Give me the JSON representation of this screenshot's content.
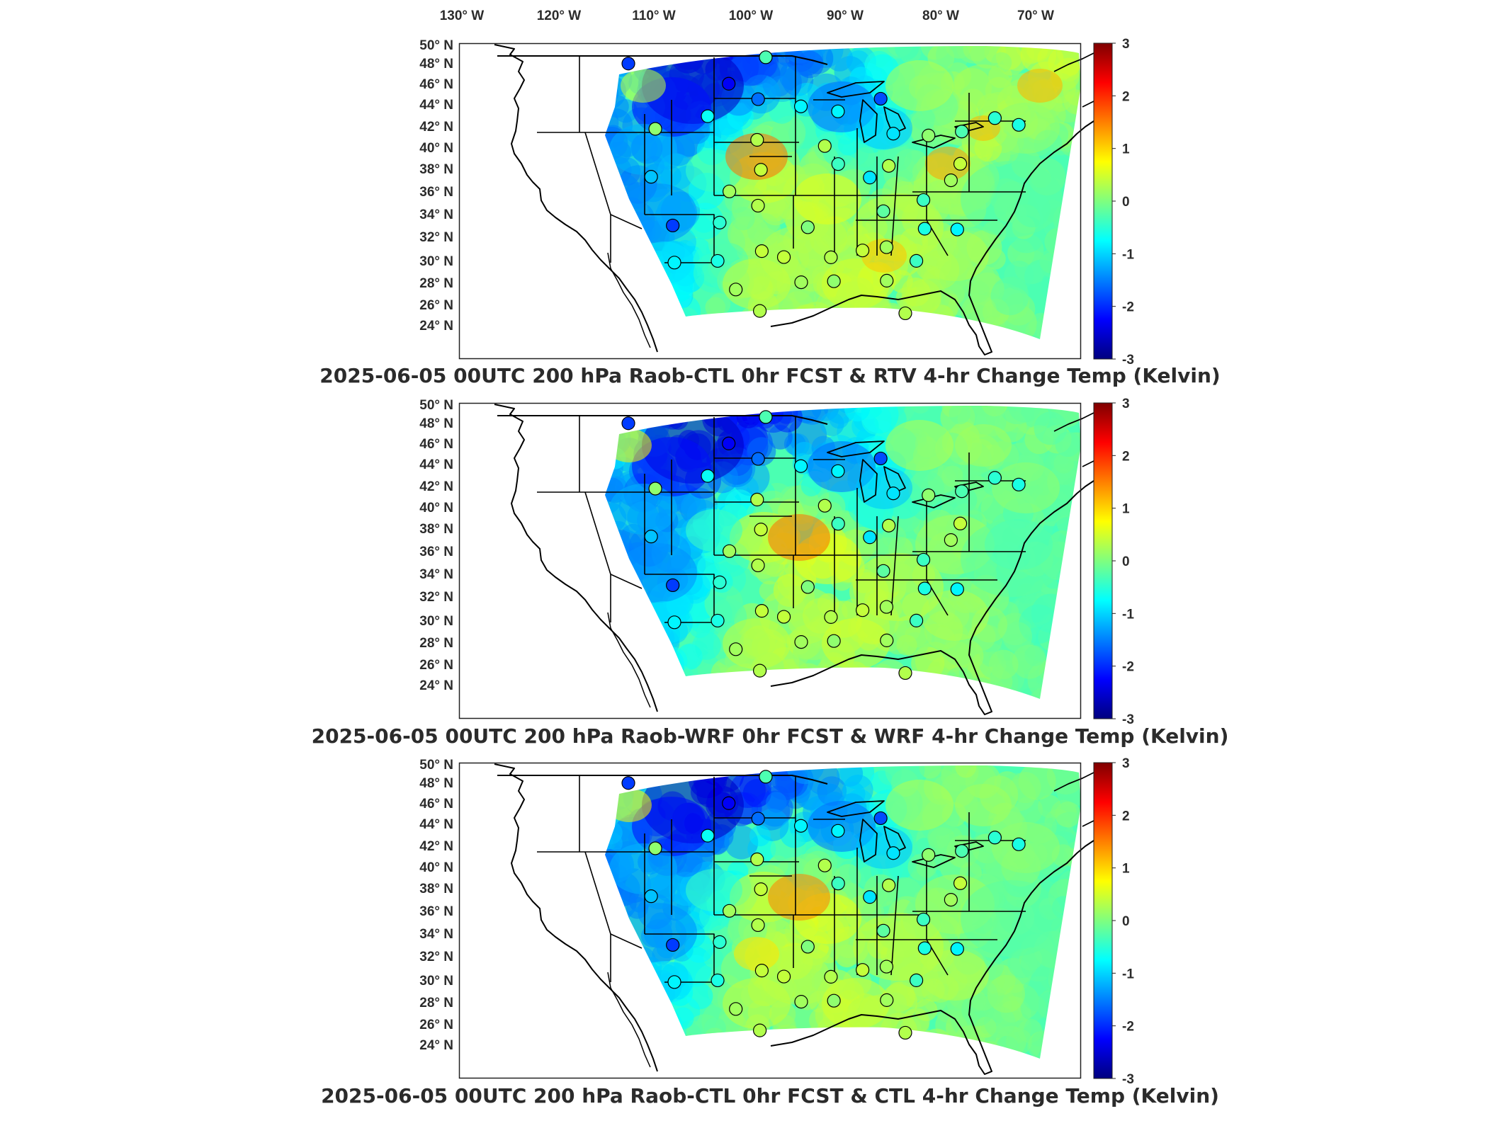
{
  "lon_labels": [
    "130° W",
    "120° W",
    "110° W",
    "100° W",
    "90° W",
    "80° W",
    "70° W"
  ],
  "lat_labels": [
    "50° N",
    "48° N",
    "46° N",
    "44° N",
    "42° N",
    "40° N",
    "38° N",
    "36° N",
    "34° N",
    "32° N",
    "30° N",
    "28° N",
    "26° N",
    "24° N"
  ],
  "colorbar": {
    "ticks": [
      "3",
      "2",
      "1",
      "0",
      "-1",
      "-2",
      "-3"
    ],
    "min": -3,
    "max": 3,
    "colormap": [
      "#00007f",
      "#0000ff",
      "#007fff",
      "#00ffff",
      "#7fff7f",
      "#ffff00",
      "#ff7f00",
      "#ff0000",
      "#7f0000"
    ]
  },
  "panels": [
    {
      "title": "2025-06-05 00UTC 200 hPa Raob-CTL 0hr FCST & RTV 4-hr Change Temp (Kelvin)",
      "variant": "rtv"
    },
    {
      "title": "2025-06-05 00UTC 200 hPa Raob-WRF 0hr FCST & WRF 4-hr Change Temp (Kelvin)",
      "variant": "wrf"
    },
    {
      "title": "2025-06-05 00UTC 200 hPa Raob-CTL 0hr FCST & CTL 4-hr Change Temp (Kelvin)",
      "variant": "ctl"
    }
  ],
  "map_data": {
    "projection": "lambert-conformal",
    "lon_range": [
      -130,
      -65
    ],
    "lat_range": [
      24,
      50
    ],
    "units": "Kelvin",
    "raob_stations": [
      {
        "lon": -111.4,
        "lat": 48.6,
        "v": -1.9
      },
      {
        "lon": -100.8,
        "lat": 46.8,
        "v": -2.3
      },
      {
        "lon": -97.7,
        "lat": 45.5,
        "v": -1.6
      },
      {
        "lon": -103.0,
        "lat": 44.1,
        "v": -0.7
      },
      {
        "lon": -108.5,
        "lat": 43.1,
        "v": 0.1
      },
      {
        "lon": -108.9,
        "lat": 39.1,
        "v": -1.1
      },
      {
        "lon": -106.6,
        "lat": 35.0,
        "v": -1.9
      },
      {
        "lon": -106.4,
        "lat": 31.9,
        "v": -0.8
      },
      {
        "lon": -101.7,
        "lat": 35.2,
        "v": -0.5
      },
      {
        "lon": -101.9,
        "lat": 32.0,
        "v": -0.6
      },
      {
        "lon": -100.7,
        "lat": 37.8,
        "v": 0.2
      },
      {
        "lon": -97.4,
        "lat": 39.6,
        "v": 0.4
      },
      {
        "lon": -97.8,
        "lat": 42.1,
        "v": 0.3
      },
      {
        "lon": -93.2,
        "lat": 44.9,
        "v": -0.8
      },
      {
        "lon": -96.9,
        "lat": 49.0,
        "v": -0.3
      },
      {
        "lon": -89.3,
        "lat": 44.5,
        "v": -0.8
      },
      {
        "lon": -84.8,
        "lat": 45.6,
        "v": -1.8
      },
      {
        "lon": -83.5,
        "lat": 42.7,
        "v": -0.9
      },
      {
        "lon": -89.3,
        "lat": 40.1,
        "v": -0.4
      },
      {
        "lon": -90.7,
        "lat": 41.6,
        "v": 0.3
      },
      {
        "lon": -86.0,
        "lat": 39.0,
        "v": -0.9
      },
      {
        "lon": -84.0,
        "lat": 40.0,
        "v": 0.3
      },
      {
        "lon": -79.8,
        "lat": 42.6,
        "v": 0.1
      },
      {
        "lon": -76.3,
        "lat": 43.0,
        "v": -0.3
      },
      {
        "lon": -72.8,
        "lat": 44.2,
        "v": -0.5
      },
      {
        "lon": -70.3,
        "lat": 43.7,
        "v": -0.6
      },
      {
        "lon": -77.5,
        "lat": 38.9,
        "v": 0.2
      },
      {
        "lon": -80.4,
        "lat": 37.2,
        "v": -0.4
      },
      {
        "lon": -84.6,
        "lat": 36.2,
        "v": -0.2
      },
      {
        "lon": -80.3,
        "lat": 34.8,
        "v": -0.6
      },
      {
        "lon": -76.9,
        "lat": 34.8,
        "v": -0.8
      },
      {
        "lon": -81.2,
        "lat": 32.1,
        "v": -0.4
      },
      {
        "lon": -84.3,
        "lat": 33.2,
        "v": 0.2
      },
      {
        "lon": -86.8,
        "lat": 32.9,
        "v": 0.4
      },
      {
        "lon": -90.1,
        "lat": 32.3,
        "v": 0.3
      },
      {
        "lon": -92.5,
        "lat": 34.8,
        "v": 0.0
      },
      {
        "lon": -95.0,
        "lat": 32.3,
        "v": 0.4
      },
      {
        "lon": -97.7,
        "lat": 36.6,
        "v": 0.3
      },
      {
        "lon": -97.3,
        "lat": 32.8,
        "v": 0.4
      },
      {
        "lon": -100.0,
        "lat": 29.6,
        "v": 0.2
      },
      {
        "lon": -97.5,
        "lat": 27.8,
        "v": 0.3
      },
      {
        "lon": -93.2,
        "lat": 30.2,
        "v": 0.2
      },
      {
        "lon": -89.8,
        "lat": 30.3,
        "v": 0.1
      },
      {
        "lon": -84.3,
        "lat": 30.4,
        "v": 0.2
      },
      {
        "lon": -82.4,
        "lat": 27.7,
        "v": 0.3
      },
      {
        "lon": -76.5,
        "lat": 40.3,
        "v": 0.4
      }
    ]
  }
}
